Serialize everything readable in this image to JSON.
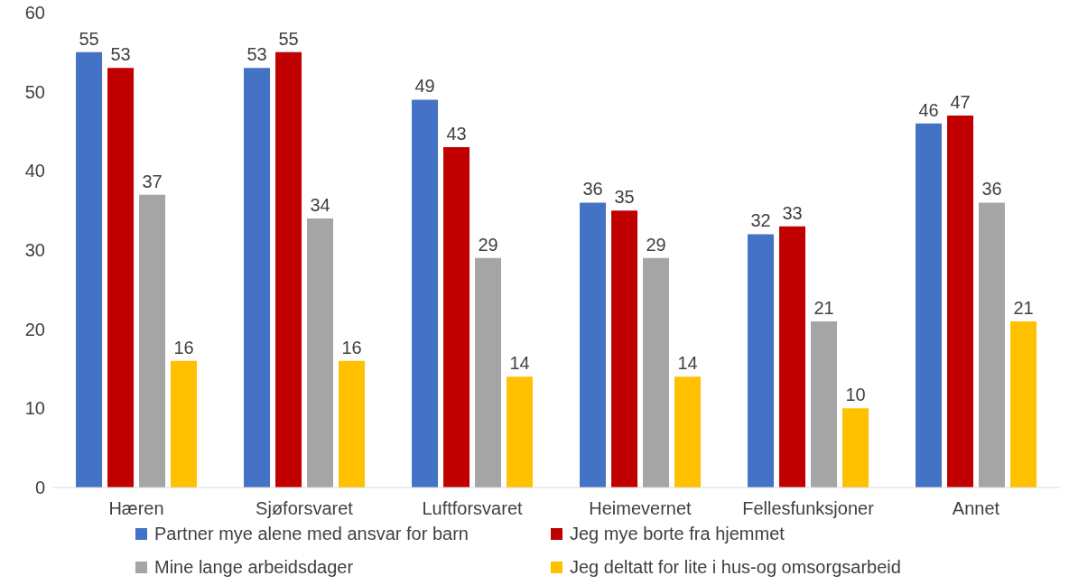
{
  "chart_data": {
    "type": "bar",
    "categories": [
      "Hæren",
      "Sjøforsvaret",
      "Luftforsvaret",
      "Heimevernet",
      "Fellesfunksjoner",
      "Annet"
    ],
    "series": [
      {
        "name": "Partner mye alene med ansvar for barn",
        "color": "#4472c4",
        "values": [
          55,
          53,
          49,
          36,
          32,
          46
        ]
      },
      {
        "name": "Jeg mye borte fra hjemmet",
        "color": "#c00000",
        "values": [
          53,
          55,
          43,
          35,
          33,
          47
        ]
      },
      {
        "name": "Mine lange arbeidsdager",
        "color": "#a5a5a5",
        "values": [
          37,
          34,
          29,
          29,
          21,
          36
        ]
      },
      {
        "name": "Jeg deltatt for lite i hus-og omsorgsarbeid",
        "color": "#ffc000",
        "values": [
          16,
          16,
          14,
          14,
          10,
          21
        ]
      }
    ],
    "ylim": [
      0,
      60
    ],
    "yticks": [
      0,
      10,
      20,
      30,
      40,
      50,
      60
    ],
    "grid": false,
    "legend": "bottom",
    "data_labels": true
  }
}
